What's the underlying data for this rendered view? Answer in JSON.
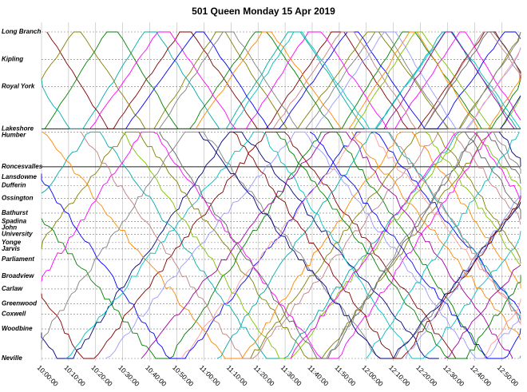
{
  "chart_data": {
    "type": "line",
    "title": "501 Queen Monday  15 Apr 2019",
    "xlabel": "",
    "ylabel": "",
    "x_ticks": [
      "10:00:00",
      "10:10:00",
      "10:20:00",
      "10:30:00",
      "10:40:00",
      "10:50:00",
      "11:00:00",
      "11:10:00",
      "11:20:00",
      "11:30:00",
      "11:40:00",
      "11:50:00",
      "12:00:00",
      "12:10:00",
      "12:20:00",
      "12:30:00",
      "12:40:00",
      "12:50:00"
    ],
    "xlim": [
      "10:00:00",
      "12:57:00"
    ],
    "stops": [
      {
        "name": "Long Branch",
        "dist_km": 0.0
      },
      {
        "name": "Kipling",
        "dist_km": 1.3
      },
      {
        "name": "Royal York",
        "dist_km": 2.6
      },
      {
        "name": "Lakeshore",
        "dist_km": 4.6
      },
      {
        "name": "Humber",
        "dist_km": 4.75
      },
      {
        "name": "Roncesvalles",
        "dist_km": 6.4
      },
      {
        "name": "Lansdowne",
        "dist_km": 6.9
      },
      {
        "name": "Dufferin",
        "dist_km": 7.3
      },
      {
        "name": "Ossington",
        "dist_km": 7.9
      },
      {
        "name": "Bathurst",
        "dist_km": 8.6
      },
      {
        "name": "Spadina",
        "dist_km": 9.0
      },
      {
        "name": "John",
        "dist_km": 9.3
      },
      {
        "name": "University",
        "dist_km": 9.6
      },
      {
        "name": "Yonge",
        "dist_km": 10.0
      },
      {
        "name": "Jarvis",
        "dist_km": 10.3
      },
      {
        "name": "Parliament",
        "dist_km": 10.8
      },
      {
        "name": "Broadview",
        "dist_km": 11.6
      },
      {
        "name": "Carlaw",
        "dist_km": 12.2
      },
      {
        "name": "Greenwood",
        "dist_km": 12.9
      },
      {
        "name": "Coxwell",
        "dist_km": 13.4
      },
      {
        "name": "Woodbine",
        "dist_km": 14.1
      },
      {
        "name": "Neville",
        "dist_km": 15.5
      }
    ],
    "series_colors": [
      "#000080",
      "#00aaaa",
      "#800000",
      "#808000",
      "#008000",
      "#ff00ff",
      "#0000ff",
      "#808080",
      "#ff8800",
      "#00c0c0",
      "#c08080",
      "#9999ff",
      "#80c000",
      "#a000a0",
      "#606060",
      "#ff9999"
    ],
    "grid": true,
    "legend": "none"
  }
}
